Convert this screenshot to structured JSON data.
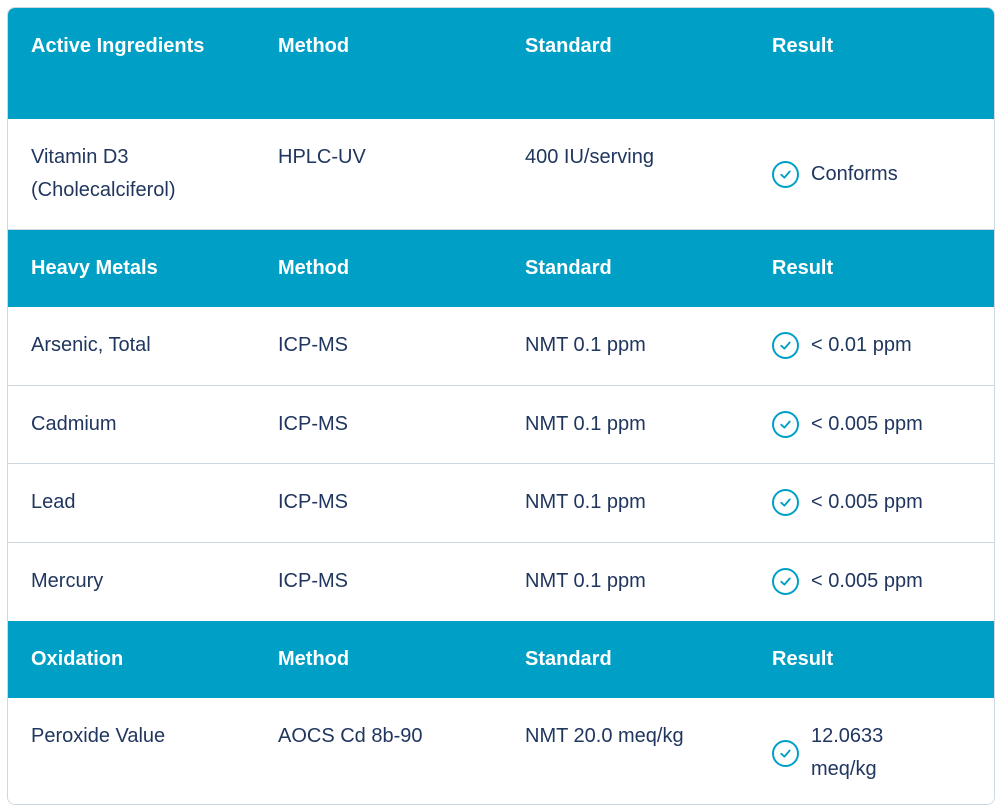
{
  "sections": [
    {
      "header": {
        "category": "Active Ingredients",
        "method": "Method",
        "standard": "Standard",
        "result": "Result"
      },
      "rows": [
        {
          "name": "Vitamin D3 (Cholecalciferol)",
          "method": "HPLC-UV",
          "standard": "400 IU/serving",
          "result": "Conforms",
          "status_icon": "check-circle-icon"
        }
      ]
    },
    {
      "header": {
        "category": "Heavy Metals",
        "method": "Method",
        "standard": "Standard",
        "result": "Result"
      },
      "rows": [
        {
          "name": "Arsenic, Total",
          "method": "ICP-MS",
          "standard": "NMT 0.1 ppm",
          "result": "< 0.01 ppm",
          "status_icon": "check-circle-icon"
        },
        {
          "name": "Cadmium",
          "method": "ICP-MS",
          "standard": "NMT 0.1 ppm",
          "result": "< 0.005 ppm",
          "status_icon": "check-circle-icon"
        },
        {
          "name": "Lead",
          "method": "ICP-MS",
          "standard": "NMT 0.1 ppm",
          "result": "< 0.005 ppm",
          "status_icon": "check-circle-icon"
        },
        {
          "name": "Mercury",
          "method": "ICP-MS",
          "standard": "NMT 0.1 ppm",
          "result": "< 0.005 ppm",
          "status_icon": "check-circle-icon"
        }
      ]
    },
    {
      "header": {
        "category": "Oxidation",
        "method": "Method",
        "standard": "Standard",
        "result": "Result"
      },
      "rows": [
        {
          "name": "Peroxide Value",
          "method": "AOCS Cd 8b-90",
          "standard": "NMT 20.0 meq/kg",
          "result": "12.0633 meq/kg",
          "status_icon": "check-circle-icon"
        }
      ]
    }
  ],
  "colors": {
    "header_bg": "#00a0c6",
    "header_text": "#ffffff",
    "body_text": "#20365f",
    "border": "#cfd8e1",
    "icon": "#00a0c6"
  }
}
